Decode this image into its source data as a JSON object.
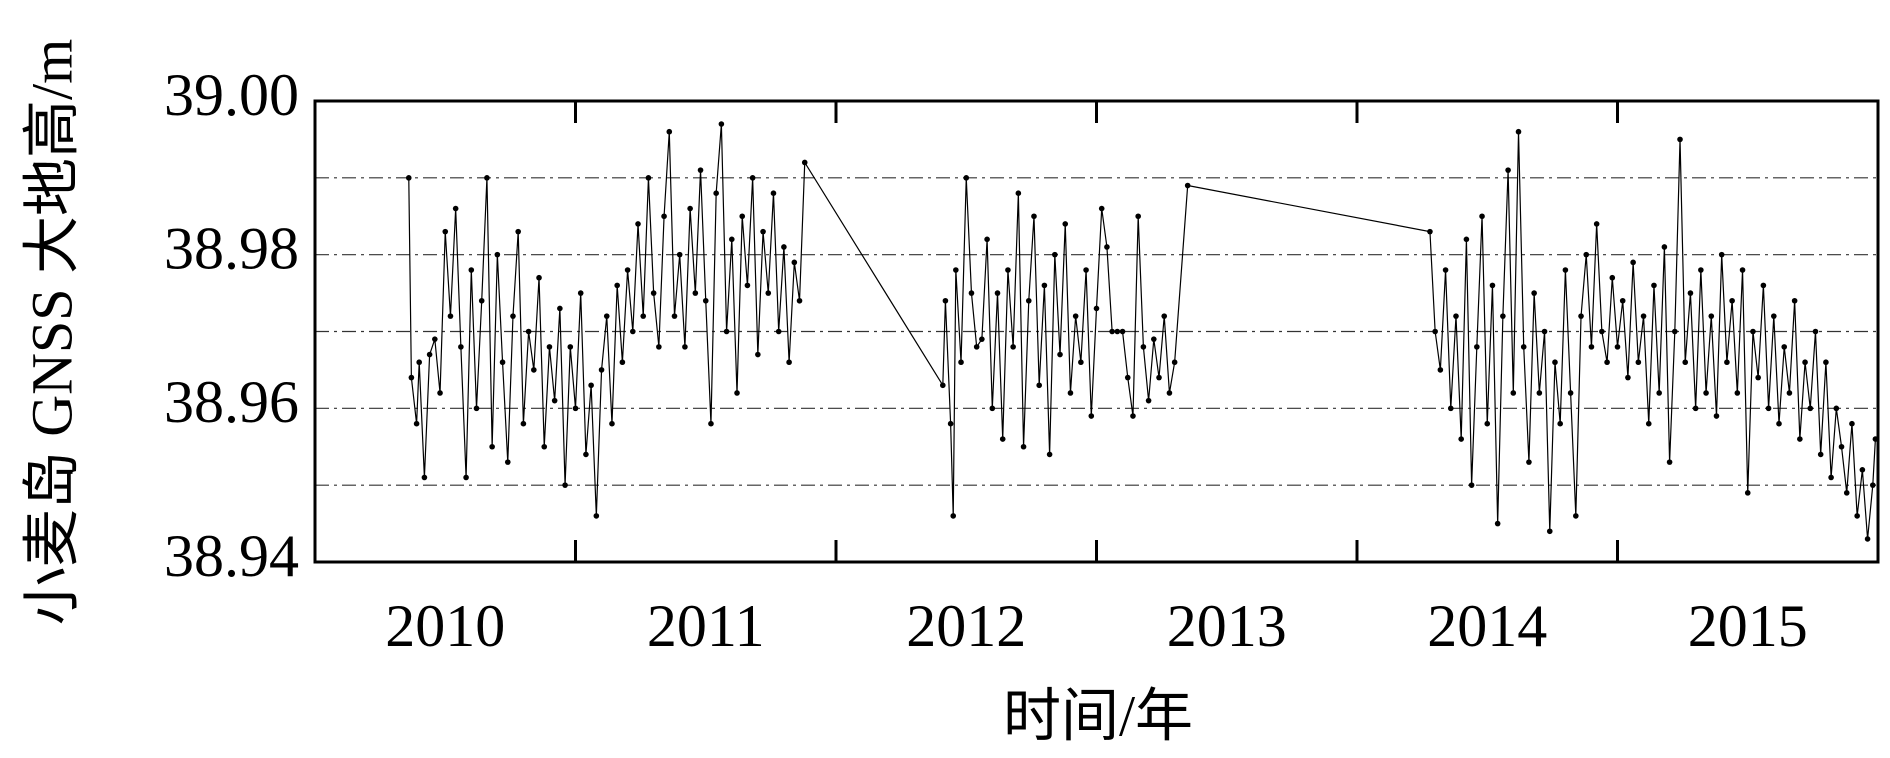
{
  "chart_data": {
    "type": "line",
    "ylabel": "小麦岛 GNSS 大地高/m",
    "xlabel": "时间/年",
    "xlim": [
      2010,
      2016
    ],
    "xticks": [
      {
        "value": 2010.5,
        "label": "2010"
      },
      {
        "value": 2011.5,
        "label": "2011"
      },
      {
        "value": 2012.5,
        "label": "2012"
      },
      {
        "value": 2013.5,
        "label": "2013"
      },
      {
        "value": 2014.5,
        "label": "2014"
      },
      {
        "value": 2015.5,
        "label": "2015"
      }
    ],
    "year_ticks": [
      2011,
      2012,
      2013,
      2014,
      2015
    ],
    "ylim": [
      38.94,
      39.0
    ],
    "yticks": [
      38.94,
      38.96,
      38.98,
      {
        "value": 39.0,
        "label": "39.00"
      }
    ],
    "grid_lines": [
      38.95,
      38.96,
      38.97,
      38.98,
      38.99
    ],
    "color": "#000000",
    "x": [
      2010.36,
      2010.37,
      2010.39,
      2010.4,
      2010.42,
      2010.44,
      2010.46,
      2010.48,
      2010.5,
      2010.52,
      2010.54,
      2010.56,
      2010.58,
      2010.6,
      2010.62,
      2010.64,
      2010.66,
      2010.68,
      2010.7,
      2010.72,
      2010.74,
      2010.76,
      2010.78,
      2010.8,
      2010.82,
      2010.84,
      2010.86,
      2010.88,
      2010.9,
      2010.92,
      2010.94,
      2010.96,
      2010.98,
      2011.0,
      2011.02,
      2011.04,
      2011.06,
      2011.08,
      2011.1,
      2011.12,
      2011.14,
      2011.16,
      2011.18,
      2011.2,
      2011.22,
      2011.24,
      2011.26,
      2011.28,
      2011.3,
      2011.32,
      2011.34,
      2011.36,
      2011.38,
      2011.4,
      2011.42,
      2011.44,
      2011.46,
      2011.48,
      2011.5,
      2011.52,
      2011.54,
      2011.56,
      2011.58,
      2011.6,
      2011.62,
      2011.64,
      2011.66,
      2011.68,
      2011.7,
      2011.72,
      2011.74,
      2011.76,
      2011.78,
      2011.8,
      2011.82,
      2011.84,
      2011.86,
      2011.88,
      2012.41,
      2012.42,
      2012.44,
      2012.45,
      2012.46,
      2012.48,
      2012.5,
      2012.52,
      2012.54,
      2012.56,
      2012.58,
      2012.6,
      2012.62,
      2012.64,
      2012.66,
      2012.68,
      2012.7,
      2012.72,
      2012.74,
      2012.76,
      2012.78,
      2012.8,
      2012.82,
      2012.84,
      2012.86,
      2012.88,
      2012.9,
      2012.92,
      2012.94,
      2012.96,
      2012.98,
      2013.0,
      2013.02,
      2013.04,
      2013.06,
      2013.08,
      2013.1,
      2013.12,
      2013.14,
      2013.16,
      2013.18,
      2013.2,
      2013.22,
      2013.24,
      2013.26,
      2013.28,
      2013.3,
      2013.35,
      2014.28,
      2014.3,
      2014.32,
      2014.34,
      2014.36,
      2014.38,
      2014.4,
      2014.42,
      2014.44,
      2014.46,
      2014.48,
      2014.5,
      2014.52,
      2014.54,
      2014.56,
      2014.58,
      2014.6,
      2014.62,
      2014.64,
      2014.66,
      2014.68,
      2014.7,
      2014.72,
      2014.74,
      2014.76,
      2014.78,
      2014.8,
      2014.82,
      2014.84,
      2014.86,
      2014.88,
      2014.9,
      2014.92,
      2014.94,
      2014.96,
      2014.98,
      2015.0,
      2015.02,
      2015.04,
      2015.06,
      2015.08,
      2015.1,
      2015.12,
      2015.14,
      2015.16,
      2015.18,
      2015.2,
      2015.22,
      2015.24,
      2015.26,
      2015.28,
      2015.3,
      2015.32,
      2015.34,
      2015.36,
      2015.38,
      2015.4,
      2015.42,
      2015.44,
      2015.46,
      2015.48,
      2015.5,
      2015.52,
      2015.54,
      2015.56,
      2015.58,
      2015.6,
      2015.62,
      2015.64,
      2015.66,
      2015.68,
      2015.7,
      2015.72,
      2015.74,
      2015.76,
      2015.78,
      2015.8,
      2015.82,
      2015.84,
      2015.86,
      2015.88,
      2015.9,
      2015.92,
      2015.94,
      2015.96,
      2015.98,
      2015.99
    ],
    "values": [
      38.99,
      38.964,
      38.958,
      38.966,
      38.951,
      38.967,
      38.969,
      38.962,
      38.983,
      38.972,
      38.986,
      38.968,
      38.951,
      38.978,
      38.96,
      38.974,
      38.99,
      38.955,
      38.98,
      38.966,
      38.953,
      38.972,
      38.983,
      38.958,
      38.97,
      38.965,
      38.977,
      38.955,
      38.968,
      38.961,
      38.973,
      38.95,
      38.968,
      38.96,
      38.975,
      38.954,
      38.963,
      38.946,
      38.965,
      38.972,
      38.958,
      38.976,
      38.966,
      38.978,
      38.97,
      38.984,
      38.972,
      38.99,
      38.975,
      38.968,
      38.985,
      38.996,
      38.972,
      38.98,
      38.968,
      38.986,
      38.975,
      38.991,
      38.974,
      38.958,
      38.988,
      38.997,
      38.97,
      38.982,
      38.962,
      38.985,
      38.976,
      38.99,
      38.967,
      38.983,
      38.975,
      38.988,
      38.97,
      38.981,
      38.966,
      38.979,
      38.974,
      38.992,
      38.963,
      38.974,
      38.958,
      38.946,
      38.978,
      38.966,
      38.99,
      38.975,
      38.968,
      38.969,
      38.982,
      38.96,
      38.975,
      38.956,
      38.978,
      38.968,
      38.988,
      38.955,
      38.974,
      38.985,
      38.963,
      38.976,
      38.954,
      38.98,
      38.967,
      38.984,
      38.962,
      38.972,
      38.966,
      38.978,
      38.959,
      38.973,
      38.986,
      38.981,
      38.97,
      38.97,
      38.97,
      38.964,
      38.959,
      38.985,
      38.968,
      38.961,
      38.969,
      38.964,
      38.972,
      38.962,
      38.966,
      38.989,
      38.983,
      38.97,
      38.965,
      38.978,
      38.96,
      38.972,
      38.956,
      38.982,
      38.95,
      38.968,
      38.985,
      38.958,
      38.976,
      38.945,
      38.972,
      38.991,
      38.962,
      38.996,
      38.968,
      38.953,
      38.975,
      38.962,
      38.97,
      38.944,
      38.966,
      38.958,
      38.978,
      38.962,
      38.946,
      38.972,
      38.98,
      38.968,
      38.984,
      38.97,
      38.966,
      38.977,
      38.968,
      38.974,
      38.964,
      38.979,
      38.966,
      38.972,
      38.958,
      38.976,
      38.962,
      38.981,
      38.953,
      38.97,
      38.995,
      38.966,
      38.975,
      38.96,
      38.978,
      38.962,
      38.972,
      38.959,
      38.98,
      38.966,
      38.974,
      38.962,
      38.978,
      38.949,
      38.97,
      38.964,
      38.976,
      38.96,
      38.972,
      38.958,
      38.968,
      38.962,
      38.974,
      38.956,
      38.966,
      38.96,
      38.97,
      38.954,
      38.966,
      38.951,
      38.96,
      38.955,
      38.949,
      38.958,
      38.946,
      38.952,
      38.943,
      38.95,
      38.956
    ]
  }
}
